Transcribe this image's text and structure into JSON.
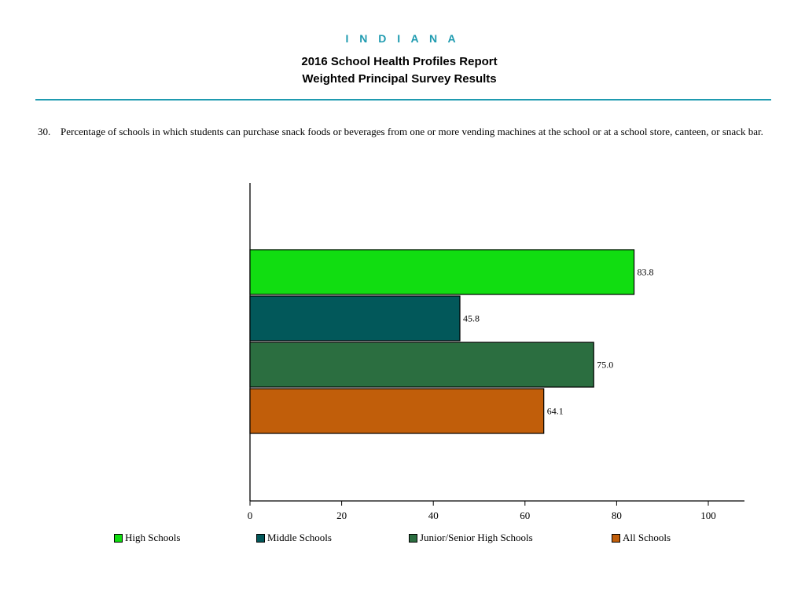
{
  "header": {
    "state": "I N D I A N A",
    "title_line1": "2016 School Health Profiles Report",
    "title_line2": "Weighted Principal Survey Results"
  },
  "question": {
    "number": "30.",
    "text": "Percentage of schools in which students can purchase snack foods or beverages from one or more vending machines at the school or at a school store, canteen, or snack bar."
  },
  "chart_data": {
    "type": "bar",
    "orientation": "horizontal",
    "series": [
      {
        "name": "High Schools",
        "value": 83.8,
        "label": "83.8",
        "color": "#11dd11"
      },
      {
        "name": "Middle Schools",
        "value": 45.8,
        "label": "45.8",
        "color": "#02585a"
      },
      {
        "name": "Junior/Senior High Schools",
        "value": 75.0,
        "label": "75.0",
        "color": "#2b6e40"
      },
      {
        "name": "All Schools",
        "value": 64.1,
        "label": "64.1",
        "color": "#c15e0a"
      }
    ],
    "xlim": [
      0,
      100
    ],
    "xticks": [
      "0",
      "20",
      "40",
      "60",
      "80",
      "100"
    ],
    "legend_position": "bottom",
    "grid": false
  }
}
